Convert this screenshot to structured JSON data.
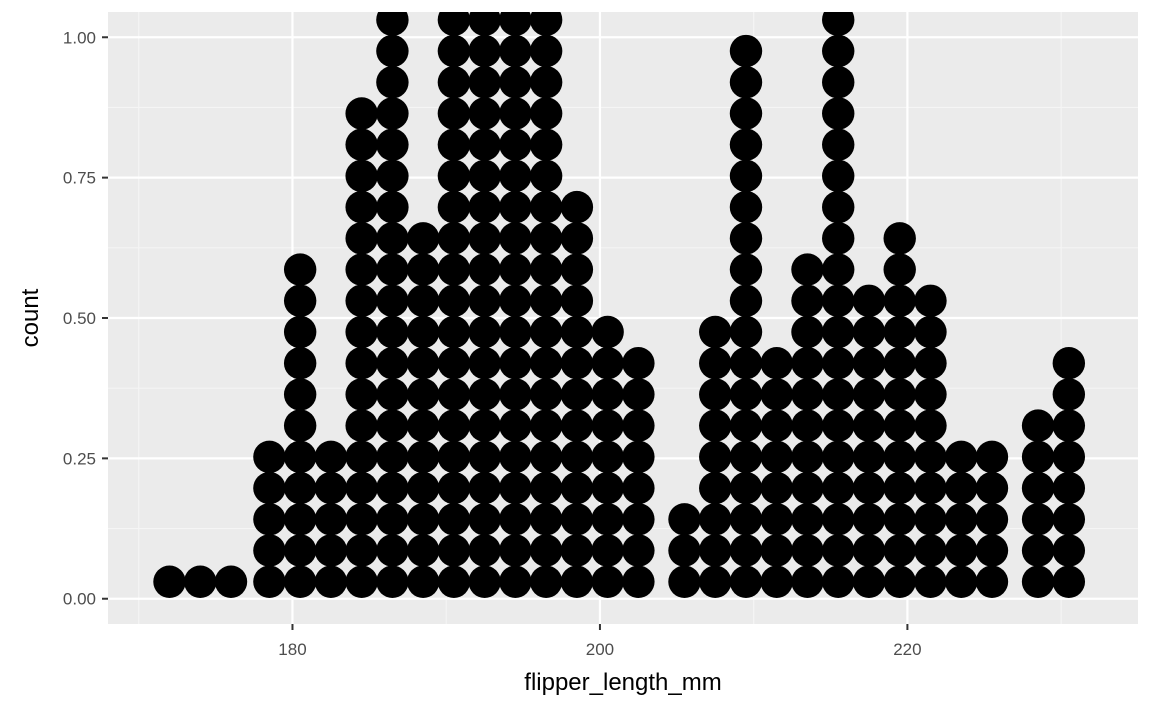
{
  "chart_data": {
    "type": "dotplot",
    "xlabel": "flipper_length_mm",
    "ylabel": "count",
    "xlim": [
      168,
      235
    ],
    "ylim": [
      -0.045,
      1.045
    ],
    "x_ticks": [
      180,
      200,
      220
    ],
    "x_tick_labels": [
      "180",
      "200",
      "220"
    ],
    "y_ticks": [
      0,
      0.25,
      0.5,
      0.75,
      1
    ],
    "y_tick_labels": [
      "0.00",
      "0.25",
      "0.50",
      "0.75",
      "1.00"
    ],
    "dot_step": 0.0556,
    "stacks": [
      {
        "x": 172.0,
        "count": 1
      },
      {
        "x": 174.0,
        "count": 1
      },
      {
        "x": 176.0,
        "count": 1
      },
      {
        "x": 178.5,
        "count": 5
      },
      {
        "x": 180.5,
        "count": 11
      },
      {
        "x": 182.5,
        "count": 5
      },
      {
        "x": 184.5,
        "count": 16
      },
      {
        "x": 186.5,
        "count": 19
      },
      {
        "x": 188.5,
        "count": 12
      },
      {
        "x": 190.5,
        "count": 19
      },
      {
        "x": 192.5,
        "count": 19
      },
      {
        "x": 194.5,
        "count": 19
      },
      {
        "x": 196.5,
        "count": 19
      },
      {
        "x": 198.5,
        "count": 13
      },
      {
        "x": 200.5,
        "count": 9
      },
      {
        "x": 202.5,
        "count": 8
      },
      {
        "x": 205.5,
        "count": 3
      },
      {
        "x": 207.5,
        "count": 9
      },
      {
        "x": 209.5,
        "count": 18
      },
      {
        "x": 211.5,
        "count": 8
      },
      {
        "x": 213.5,
        "count": 11
      },
      {
        "x": 215.5,
        "count": 19
      },
      {
        "x": 217.5,
        "count": 10
      },
      {
        "x": 219.5,
        "count": 12
      },
      {
        "x": 221.5,
        "count": 10
      },
      {
        "x": 223.5,
        "count": 5
      },
      {
        "x": 225.5,
        "count": 5
      },
      {
        "x": 228.5,
        "count": 6
      },
      {
        "x": 230.5,
        "count": 8
      }
    ],
    "colors": {
      "panel": "#ebebeb",
      "grid_major": "#ffffff",
      "grid_minor": "#f5f5f5",
      "dot": "#000000",
      "tick": "#333333",
      "tick_label": "#4d4d4d",
      "axis_title": "#000000"
    },
    "grid": true
  }
}
